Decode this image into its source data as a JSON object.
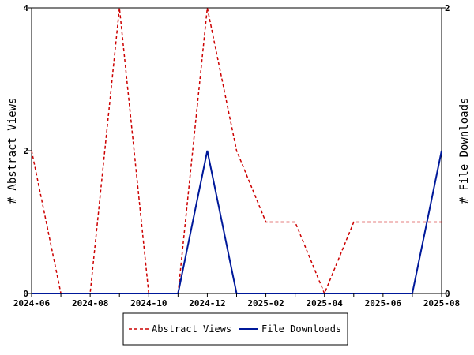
{
  "chart_data": {
    "type": "line",
    "title": "",
    "x": [
      "2024-06",
      "2024-07",
      "2024-08",
      "2024-09",
      "2024-10",
      "2024-11",
      "2024-12",
      "2025-01",
      "2025-02",
      "2025-03",
      "2025-04",
      "2025-05",
      "2025-06",
      "2025-07",
      "2025-08"
    ],
    "x_tick_labels": [
      "2024-06",
      "2024-08",
      "2024-10",
      "2024-12",
      "2025-02",
      "2025-04",
      "2025-06",
      "2025-08"
    ],
    "xlim": [
      "2024-06",
      "2025-08"
    ],
    "ylabel": "# Abstract Views",
    "ylim": [
      0,
      4
    ],
    "y_ticks": [
      0,
      2,
      4
    ],
    "y2label": "# File Downloads",
    "y2lim": [
      0,
      2
    ],
    "y2_ticks": [
      0,
      2
    ],
    "grid": false,
    "legend_position": "bottom-center",
    "series": [
      {
        "name": "Abstract Views",
        "axis": "left",
        "color": "#cc0000",
        "dash": "dashed",
        "values": [
          2,
          0,
          0,
          4,
          0,
          0,
          4,
          2,
          1,
          1,
          0,
          1,
          1,
          1,
          1
        ]
      },
      {
        "name": "File Downloads",
        "axis": "right",
        "color": "#00199a",
        "dash": "solid",
        "values": [
          0,
          0,
          0,
          0,
          0,
          0,
          1,
          0,
          0,
          0,
          0,
          0,
          0,
          0,
          1
        ]
      }
    ]
  }
}
